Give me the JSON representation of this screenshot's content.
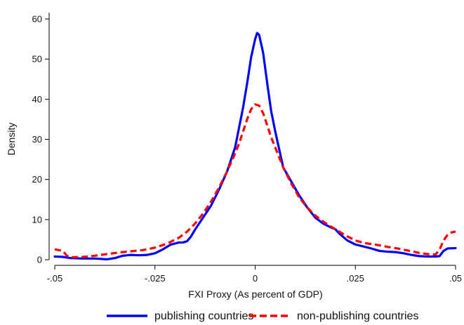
{
  "chart_data": {
    "type": "line",
    "title": "",
    "xlabel": "FXI Proxy (As percent of GDP)",
    "ylabel": "Density",
    "xlim": [
      -0.05,
      0.05
    ],
    "ylim": [
      0,
      62
    ],
    "x_ticks": [
      -0.05,
      -0.025,
      0,
      0.025,
      0.05
    ],
    "x_tick_labels": [
      "-.05",
      "-.025",
      "0",
      ".025",
      ".05"
    ],
    "y_ticks": [
      0,
      10,
      20,
      30,
      40,
      50,
      60
    ],
    "y_tick_labels": [
      "0",
      "10",
      "20",
      "30",
      "40",
      "50",
      "60"
    ],
    "grid": false,
    "legend_position": "bottom",
    "series": [
      {
        "name": "publishing countries",
        "color": "#0000ff",
        "style": "solid",
        "points": [
          [
            -0.05,
            0.8
          ],
          [
            -0.048,
            0.7
          ],
          [
            -0.046,
            0.4
          ],
          [
            -0.043,
            0.3
          ],
          [
            -0.04,
            0.3
          ],
          [
            -0.037,
            0.1
          ],
          [
            -0.035,
            0.4
          ],
          [
            -0.033,
            1.0
          ],
          [
            -0.031,
            1.2
          ],
          [
            -0.029,
            1.1
          ],
          [
            -0.027,
            1.2
          ],
          [
            -0.025,
            1.6
          ],
          [
            -0.023,
            2.6
          ],
          [
            -0.021,
            3.8
          ],
          [
            -0.019,
            4.3
          ],
          [
            -0.018,
            4.3
          ],
          [
            -0.017,
            4.6
          ],
          [
            -0.016,
            5.8
          ],
          [
            -0.015,
            7.5
          ],
          [
            -0.013,
            10.5
          ],
          [
            -0.011,
            13.5
          ],
          [
            -0.009,
            17.5
          ],
          [
            -0.007,
            22.0
          ],
          [
            -0.005,
            28.0
          ],
          [
            -0.004,
            33.0
          ],
          [
            -0.003,
            38.0
          ],
          [
            -0.002,
            44.0
          ],
          [
            -0.001,
            50.5
          ],
          [
            0.0,
            55.0
          ],
          [
            0.0005,
            56.5
          ],
          [
            0.001,
            56.0
          ],
          [
            0.002,
            51.5
          ],
          [
            0.003,
            44.0
          ],
          [
            0.004,
            37.0
          ],
          [
            0.005,
            32.0
          ],
          [
            0.006,
            27.5
          ],
          [
            0.007,
            23.0
          ],
          [
            0.009,
            19.5
          ],
          [
            0.011,
            16.0
          ],
          [
            0.013,
            13.0
          ],
          [
            0.015,
            10.5
          ],
          [
            0.017,
            9.0
          ],
          [
            0.019,
            8.0
          ],
          [
            0.02,
            7.6
          ],
          [
            0.021,
            6.5
          ],
          [
            0.023,
            4.8
          ],
          [
            0.025,
            3.8
          ],
          [
            0.027,
            3.3
          ],
          [
            0.029,
            2.8
          ],
          [
            0.031,
            2.2
          ],
          [
            0.033,
            2.0
          ],
          [
            0.035,
            1.9
          ],
          [
            0.037,
            1.6
          ],
          [
            0.039,
            1.2
          ],
          [
            0.041,
            0.9
          ],
          [
            0.043,
            0.8
          ],
          [
            0.045,
            0.8
          ],
          [
            0.046,
            0.9
          ],
          [
            0.047,
            2.2
          ],
          [
            0.048,
            2.8
          ],
          [
            0.05,
            2.9
          ]
        ]
      },
      {
        "name": "non-publishing countries",
        "color": "#ff0000",
        "style": "dashed",
        "points": [
          [
            -0.05,
            2.6
          ],
          [
            -0.048,
            2.2
          ],
          [
            -0.047,
            1.0
          ],
          [
            -0.046,
            0.6
          ],
          [
            -0.043,
            0.7
          ],
          [
            -0.04,
            1.0
          ],
          [
            -0.037,
            1.4
          ],
          [
            -0.034,
            1.8
          ],
          [
            -0.031,
            2.1
          ],
          [
            -0.028,
            2.4
          ],
          [
            -0.025,
            3.0
          ],
          [
            -0.022,
            4.0
          ],
          [
            -0.019,
            5.5
          ],
          [
            -0.017,
            7.0
          ],
          [
            -0.015,
            9.0
          ],
          [
            -0.013,
            11.5
          ],
          [
            -0.011,
            14.5
          ],
          [
            -0.009,
            18.0
          ],
          [
            -0.007,
            22.0
          ],
          [
            -0.005,
            26.5
          ],
          [
            -0.004,
            29.0
          ],
          [
            -0.003,
            32.0
          ],
          [
            -0.002,
            35.0
          ],
          [
            -0.001,
            37.5
          ],
          [
            0.0,
            38.7
          ],
          [
            0.001,
            38.4
          ],
          [
            0.002,
            36.5
          ],
          [
            0.003,
            33.5
          ],
          [
            0.004,
            30.5
          ],
          [
            0.005,
            28.0
          ],
          [
            0.007,
            23.0
          ],
          [
            0.009,
            19.0
          ],
          [
            0.011,
            15.5
          ],
          [
            0.013,
            13.0
          ],
          [
            0.015,
            11.0
          ],
          [
            0.017,
            9.5
          ],
          [
            0.019,
            8.2
          ],
          [
            0.021,
            7.0
          ],
          [
            0.023,
            5.8
          ],
          [
            0.025,
            4.8
          ],
          [
            0.027,
            4.2
          ],
          [
            0.029,
            3.9
          ],
          [
            0.031,
            3.6
          ],
          [
            0.033,
            3.2
          ],
          [
            0.035,
            2.9
          ],
          [
            0.037,
            2.5
          ],
          [
            0.039,
            2.1
          ],
          [
            0.041,
            1.7
          ],
          [
            0.043,
            1.4
          ],
          [
            0.045,
            1.3
          ],
          [
            0.046,
            2.5
          ],
          [
            0.047,
            4.8
          ],
          [
            0.048,
            6.2
          ],
          [
            0.049,
            6.8
          ],
          [
            0.05,
            7.0
          ]
        ]
      }
    ]
  }
}
